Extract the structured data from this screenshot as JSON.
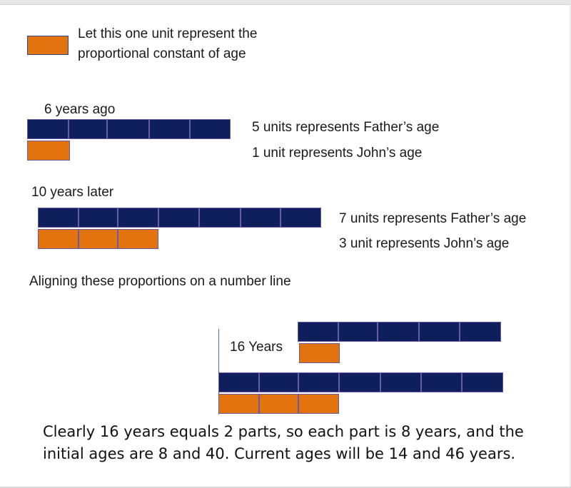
{
  "legend": {
    "text_line1": "Let this one unit represent the",
    "text_line2": "proportional constant of age",
    "color": "#e3730f"
  },
  "colors": {
    "father": "#0f1f5c",
    "john": "#e3730f",
    "border": "#6b5aa5"
  },
  "section_past": {
    "label": "6 years ago",
    "father_units": 5,
    "john_units": 1,
    "father_text": "5 units represents Father’s age",
    "john_text": "1 unit represents John’s age"
  },
  "section_future": {
    "label": "10 years later",
    "father_units": 7,
    "john_units": 3,
    "father_text": "7 units represents Father’s age",
    "john_text": "3 unit represents John’s age"
  },
  "aligning_text": "Aligning these proportions on a number line",
  "number_line": {
    "gap_label": "16 Years",
    "past_father_units": 5,
    "past_john_units": 1,
    "future_father_units": 7,
    "future_john_units": 3
  },
  "summary_text": "Clearly 16 years equals 2 parts, so each part is 8 years, and the initial ages are 8 and 40. Current ages will be 14 and 46 years."
}
